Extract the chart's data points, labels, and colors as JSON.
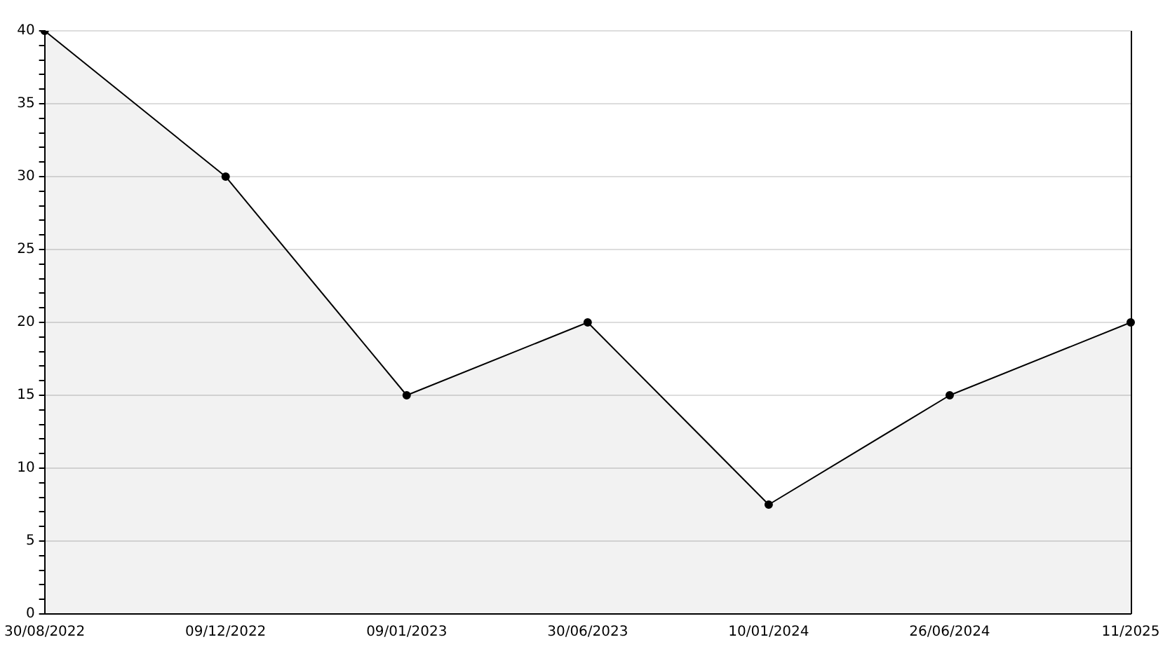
{
  "chart_data": {
    "type": "area",
    "categories": [
      "30/08/2022",
      "09/12/2022",
      "09/01/2023",
      "30/06/2023",
      "10/01/2024",
      "26/06/2024",
      "11/2025"
    ],
    "series": [
      {
        "color": "#000000",
        "values": [
          40,
          30,
          15,
          20,
          7.5,
          15,
          20
        ]
      }
    ],
    "ylim": [
      0,
      40
    ],
    "yticks": [
      0,
      {
        "value": 1,
        "label": null
      },
      {
        "value": 2,
        "label": null
      },
      {
        "value": 3,
        "label": null
      },
      {
        "value": 4,
        "label": null
      },
      5,
      {
        "value": 6,
        "label": null
      },
      {
        "value": 7,
        "label": null
      },
      {
        "value": 8,
        "label": null
      },
      {
        "value": 9,
        "label": null
      },
      10,
      {
        "value": 11,
        "label": null
      },
      {
        "value": 12,
        "label": null
      },
      {
        "value": 13,
        "label": null
      },
      {
        "value": 14,
        "label": null
      },
      15,
      {
        "value": 16,
        "label": null
      },
      {
        "value": 17,
        "label": null
      },
      {
        "value": 18,
        "label": null
      },
      {
        "value": 19,
        "label": null
      },
      20,
      {
        "value": 21,
        "label": null
      },
      {
        "value": 22,
        "label": null
      },
      {
        "value": 23,
        "label": null
      },
      {
        "value": 24,
        "label": null
      },
      25,
      {
        "value": 26,
        "label": null
      },
      {
        "value": 27,
        "label": null
      },
      {
        "value": 28,
        "label": null
      },
      {
        "value": 29,
        "label": null
      },
      30,
      {
        "value": 31,
        "label": null
      },
      {
        "value": 32,
        "label": null
      },
      {
        "value": 33,
        "label": null
      },
      {
        "value": 34,
        "label": null
      },
      35,
      {
        "value": 36,
        "label": null
      },
      {
        "value": 37,
        "label": null
      },
      {
        "value": 38,
        "label": null
      },
      {
        "value": 39,
        "label": null
      },
      40
    ],
    "grid": "y",
    "legend": false,
    "marker": "circle",
    "line_style": "solid"
  }
}
